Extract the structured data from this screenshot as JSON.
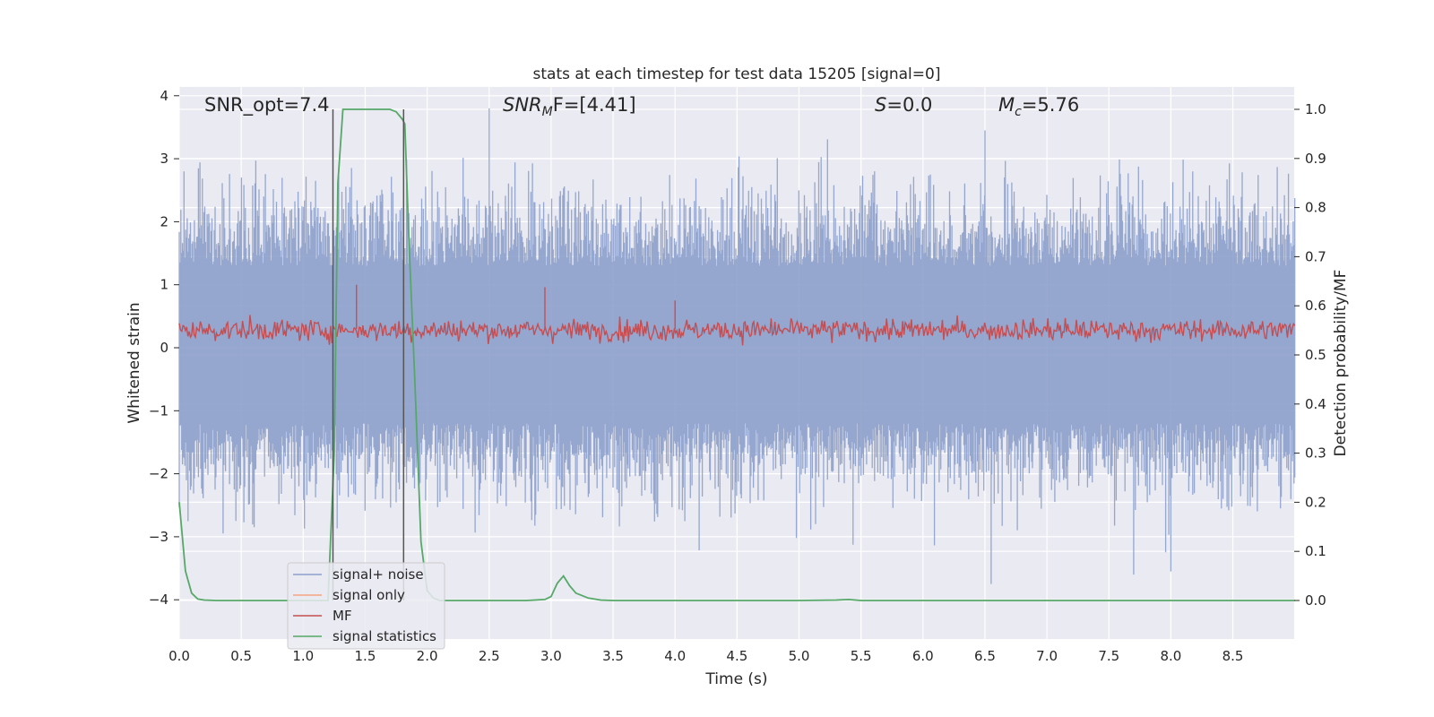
{
  "chart_data": {
    "type": "line",
    "title": "stats at each timestep for test data 15205 [signal=0]",
    "xlabel": "Time (s)",
    "ylabel": "Whitened strain",
    "y2label": "Detection probability/MF",
    "xlim": [
      0.0,
      9.0
    ],
    "ylim": [
      -4.2,
      4.2
    ],
    "y2lim": [
      -0.045,
      1.045
    ],
    "xticks": [
      "0.0",
      "0.5",
      "1.0",
      "1.5",
      "2.0",
      "2.5",
      "3.0",
      "3.5",
      "4.0",
      "4.5",
      "5.0",
      "5.5",
      "6.0",
      "6.5",
      "7.0",
      "7.5",
      "8.0",
      "8.5"
    ],
    "yticks": [
      "4",
      "3",
      "2",
      "1",
      "0",
      "−1",
      "−2",
      "−3",
      "−4"
    ],
    "y2ticks": [
      "1.0",
      "0.9",
      "0.8",
      "0.7",
      "0.6",
      "0.5",
      "0.4",
      "0.3",
      "0.2",
      "0.1",
      "0.0"
    ],
    "grid": true,
    "legend_position": "lower-left",
    "annotations": {
      "snr_opt": "SNR_opt=7.4",
      "snr_mf_main": "SNR",
      "snr_mf_sub": "M",
      "snr_mf_tail": "F=[4.41]",
      "s_label": "S",
      "s_value": "=0.0",
      "mc_label": "M",
      "mc_sub": "c",
      "mc_value": "=5.76"
    },
    "vertical_markers_time": [
      1.24,
      1.81
    ],
    "series": [
      {
        "name": "signal+ noise",
        "color": "#8da0cb",
        "axis": "left",
        "style": "dense noise, approx uniform amplitude",
        "approx_envelope": [
          -3.7,
          3.8
        ],
        "notable_peaks": [
          [
            2.5,
            3.8
          ],
          [
            6.5,
            3.45
          ],
          [
            6.55,
            -3.75
          ],
          [
            7.7,
            -3.6
          ],
          [
            8.0,
            -3.55
          ]
        ]
      },
      {
        "name": "signal only",
        "color": "#f4a582",
        "axis": "left",
        "values": []
      },
      {
        "name": "MF",
        "color": "#c44e52",
        "axis": "left",
        "style": "dense noise",
        "approx_band": [
          0.0,
          0.6
        ],
        "notable_peaks": [
          [
            1.43,
            1.0
          ],
          [
            2.95,
            0.96
          ],
          [
            4.0,
            0.75
          ]
        ]
      },
      {
        "name": "signal statistics",
        "color": "#55a868",
        "axis": "right",
        "x": [
          0.0,
          0.05,
          0.1,
          0.15,
          0.2,
          0.3,
          0.5,
          1.0,
          1.1,
          1.2,
          1.25,
          1.28,
          1.32,
          1.4,
          1.6,
          1.7,
          1.75,
          1.8,
          1.82,
          1.85,
          1.9,
          1.95,
          2.0,
          2.05,
          2.1,
          2.3,
          2.8,
          2.95,
          3.0,
          3.05,
          3.1,
          3.15,
          3.2,
          3.3,
          3.4,
          3.5,
          4.0,
          5.0,
          5.3,
          5.4,
          5.5,
          6.0,
          7.0,
          8.0,
          9.0
        ],
        "values": [
          0.2,
          0.06,
          0.015,
          0.003,
          0.001,
          0.0,
          0.0,
          0.0,
          0.0,
          0.0,
          0.3,
          0.85,
          1.0,
          1.0,
          1.0,
          1.0,
          0.995,
          0.98,
          0.97,
          0.75,
          0.45,
          0.12,
          0.02,
          0.005,
          0.0,
          0.0,
          0.0,
          0.002,
          0.008,
          0.035,
          0.05,
          0.03,
          0.015,
          0.005,
          0.001,
          0.0,
          0.0,
          0.0,
          0.001,
          0.002,
          0.0,
          0.0,
          0.0,
          0.0,
          0.0
        ]
      }
    ]
  }
}
